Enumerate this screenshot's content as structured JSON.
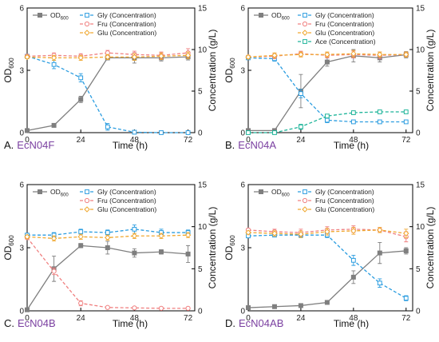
{
  "colors": {
    "od": "#7f7f7f",
    "gly": "#2b9de0",
    "fru": "#f08080",
    "glu": "#f0a830",
    "ace": "#1fb59a",
    "strain": "#7a3fa0"
  },
  "chart_data": [
    {
      "type": "line",
      "panel": "A.",
      "strain": "EcN04F",
      "xlabel": "Time (h)",
      "ylabel_left": "OD",
      "ylabel_left_sub": "600",
      "ylabel_right": "Concentration (g/L)",
      "xlim": [
        0,
        75
      ],
      "ylim_left": [
        0,
        6
      ],
      "ylim_right": [
        0,
        15
      ],
      "xticks": [
        "0",
        "24",
        "48",
        "72"
      ],
      "yticks_left": [
        "0",
        "3",
        "6"
      ],
      "yticks_right": [
        "0",
        "5",
        "10",
        "15"
      ],
      "legend_od": "OD",
      "legend_od_sub": "600",
      "series": [
        {
          "name": "OD",
          "key": "od",
          "axis": "left",
          "style": "solid",
          "marker": "square",
          "x": [
            0,
            12,
            24,
            36,
            48,
            60,
            72
          ],
          "y": [
            0.1,
            0.35,
            1.6,
            3.6,
            3.6,
            3.6,
            3.65
          ],
          "err": [
            0.03,
            0.08,
            0.15,
            0.1,
            0.25,
            0.15,
            0.15
          ]
        },
        {
          "name": "Gly (Concentration)",
          "key": "gly",
          "axis": "right",
          "style": "dashed",
          "marker": "open-square",
          "x": [
            0,
            12,
            24,
            36,
            48,
            60,
            72
          ],
          "y": [
            9.2,
            8.2,
            6.6,
            0.7,
            0.05,
            0.0,
            0.0
          ],
          "err": [
            0.2,
            0.5,
            0.5,
            0.4,
            0.1,
            0.05,
            0.05
          ]
        },
        {
          "name": "Fru (Concentration)",
          "key": "fru",
          "axis": "right",
          "style": "dashed",
          "marker": "open-circle",
          "x": [
            0,
            12,
            24,
            36,
            48,
            60,
            72
          ],
          "y": [
            9.2,
            9.3,
            9.2,
            9.6,
            9.4,
            9.3,
            9.6
          ],
          "err": [
            0.2,
            0.3,
            0.3,
            0.3,
            0.4,
            0.4,
            0.5
          ]
        },
        {
          "name": "Glu (Concentration)",
          "key": "glu",
          "axis": "right",
          "style": "dashed",
          "marker": "open-diamond",
          "x": [
            0,
            12,
            24,
            36,
            48,
            60,
            72
          ],
          "y": [
            9.1,
            9.0,
            9.0,
            9.1,
            9.1,
            9.2,
            9.3
          ],
          "err": [
            0.2,
            0.3,
            0.3,
            0.3,
            0.4,
            0.4,
            0.4
          ]
        }
      ]
    },
    {
      "type": "line",
      "panel": "B.",
      "strain": "EcN04A",
      "xlabel": "Time (h)",
      "ylabel_left": "OD",
      "ylabel_left_sub": "600",
      "ylabel_right": "Concentration (g/L)",
      "xlim": [
        0,
        75
      ],
      "ylim_left": [
        0,
        6
      ],
      "ylim_right": [
        0,
        15
      ],
      "xticks": [
        "0",
        "24",
        "48",
        "72"
      ],
      "yticks_left": [
        "0",
        "3",
        "6"
      ],
      "yticks_right": [
        "0",
        "5",
        "10",
        "15"
      ],
      "legend_od": "OD",
      "legend_od_sub": "600",
      "series": [
        {
          "name": "OD",
          "key": "od",
          "axis": "left",
          "style": "solid",
          "marker": "square",
          "x": [
            0,
            12,
            24,
            36,
            48,
            60,
            72
          ],
          "y": [
            0.1,
            0.1,
            2.0,
            3.4,
            3.7,
            3.6,
            3.75
          ],
          "err": [
            0.02,
            0.05,
            0.8,
            0.2,
            0.3,
            0.2,
            0.15
          ]
        },
        {
          "name": "Gly (Concentration)",
          "key": "gly",
          "axis": "right",
          "style": "dashed",
          "marker": "open-square",
          "x": [
            0,
            12,
            24,
            36,
            48,
            60,
            72
          ],
          "y": [
            9.0,
            8.9,
            4.7,
            1.5,
            1.3,
            1.3,
            1.3
          ],
          "err": [
            0.2,
            0.3,
            0.5,
            0.3,
            0.15,
            0.15,
            0.15
          ]
        },
        {
          "name": "Fru (Concentration)",
          "key": "fru",
          "axis": "right",
          "style": "dashed",
          "marker": "open-circle",
          "x": [
            0,
            12,
            24,
            36,
            48,
            60,
            72
          ],
          "y": [
            9.1,
            9.2,
            9.5,
            9.3,
            9.4,
            9.3,
            9.4
          ],
          "err": [
            0.2,
            0.3,
            0.3,
            0.3,
            0.4,
            0.4,
            0.3
          ]
        },
        {
          "name": "Glu (Concentration)",
          "key": "glu",
          "axis": "right",
          "style": "dashed",
          "marker": "open-diamond",
          "x": [
            0,
            12,
            24,
            36,
            48,
            60,
            72
          ],
          "y": [
            9.1,
            9.3,
            9.4,
            9.4,
            9.5,
            9.4,
            9.4
          ],
          "err": [
            0.2,
            0.3,
            0.3,
            0.3,
            0.4,
            0.3,
            0.3
          ]
        },
        {
          "name": "Ace (Concentration)",
          "key": "ace",
          "axis": "right",
          "style": "dashed",
          "marker": "open-square",
          "x": [
            0,
            12,
            24,
            36,
            48,
            60,
            72
          ],
          "y": [
            0.0,
            0.0,
            0.7,
            2.0,
            2.4,
            2.5,
            2.5
          ],
          "err": [
            0.02,
            0.05,
            0.3,
            0.2,
            0.2,
            0.2,
            0.2
          ]
        }
      ]
    },
    {
      "type": "line",
      "panel": "C.",
      "strain": "EcN04B",
      "xlabel": "Time (h)",
      "ylabel_left": "OD",
      "ylabel_left_sub": "600",
      "ylabel_right": "Concentration (g/L)",
      "xlim": [
        0,
        75
      ],
      "ylim_left": [
        0,
        6
      ],
      "ylim_right": [
        0,
        15
      ],
      "xticks": [
        "0",
        "24",
        "48",
        "72"
      ],
      "yticks_left": [
        "0",
        "3",
        "6"
      ],
      "yticks_right": [
        "0",
        "5",
        "10",
        "15"
      ],
      "legend_od": "OD",
      "legend_od_sub": "600",
      "series": [
        {
          "name": "OD",
          "key": "od",
          "axis": "left",
          "style": "solid",
          "marker": "square",
          "x": [
            0,
            12,
            24,
            36,
            48,
            60,
            72
          ],
          "y": [
            0.05,
            2.0,
            3.1,
            3.0,
            2.75,
            2.8,
            2.7
          ],
          "err": [
            0.02,
            0.6,
            0.1,
            0.3,
            0.2,
            0.1,
            0.4
          ]
        },
        {
          "name": "Gly (Concentration)",
          "key": "gly",
          "axis": "right",
          "style": "dashed",
          "marker": "open-square",
          "x": [
            0,
            12,
            24,
            36,
            48,
            60,
            72
          ],
          "y": [
            9.0,
            9.0,
            9.4,
            9.3,
            9.7,
            9.3,
            9.3
          ],
          "err": [
            0.2,
            0.3,
            0.3,
            0.3,
            0.5,
            0.4,
            0.3
          ]
        },
        {
          "name": "Fru (Concentration)",
          "key": "fru",
          "axis": "right",
          "style": "dashed",
          "marker": "open-circle",
          "x": [
            0,
            12,
            24,
            36,
            48,
            60,
            72
          ],
          "y": [
            8.7,
            4.7,
            0.9,
            0.4,
            0.35,
            0.3,
            0.3
          ],
          "err": [
            0.2,
            0.4,
            0.3,
            0.1,
            0.1,
            0.1,
            0.1
          ]
        },
        {
          "name": "Glu (Concentration)",
          "key": "glu",
          "axis": "right",
          "style": "dashed",
          "marker": "open-diamond",
          "x": [
            0,
            12,
            24,
            36,
            48,
            60,
            72
          ],
          "y": [
            8.8,
            8.6,
            8.8,
            8.7,
            8.9,
            8.9,
            9.0
          ],
          "err": [
            0.2,
            0.3,
            0.3,
            0.3,
            0.3,
            0.3,
            0.3
          ]
        }
      ]
    },
    {
      "type": "line",
      "panel": "D.",
      "strain": "EcN04AB",
      "xlabel": "Time (h)",
      "ylabel_left": "OD",
      "ylabel_left_sub": "600",
      "ylabel_right": "Concentration (g/L)",
      "xlim": [
        0,
        75
      ],
      "ylim_left": [
        0,
        6
      ],
      "ylim_right": [
        0,
        15
      ],
      "xticks": [
        "0",
        "24",
        "48",
        "72"
      ],
      "yticks_left": [
        "0",
        "3",
        "6"
      ],
      "yticks_right": [
        "0",
        "5",
        "10",
        "15"
      ],
      "legend_od": "OD",
      "legend_od_sub": "600",
      "series": [
        {
          "name": "OD",
          "key": "od",
          "axis": "left",
          "style": "solid",
          "marker": "square",
          "x": [
            0,
            12,
            24,
            36,
            48,
            60,
            72
          ],
          "y": [
            0.15,
            0.2,
            0.25,
            0.4,
            1.6,
            2.75,
            2.85
          ],
          "err": [
            0.02,
            0.03,
            0.03,
            0.05,
            0.3,
            0.5,
            0.15
          ]
        },
        {
          "name": "Gly (Concentration)",
          "key": "gly",
          "axis": "right",
          "style": "dashed",
          "marker": "open-square",
          "x": [
            0,
            12,
            24,
            36,
            48,
            60,
            72
          ],
          "y": [
            8.9,
            9.0,
            9.0,
            9.0,
            6.0,
            3.3,
            1.5
          ],
          "err": [
            0.2,
            0.2,
            0.3,
            0.3,
            0.6,
            0.5,
            0.3
          ]
        },
        {
          "name": "Fru (Concentration)",
          "key": "fru",
          "axis": "right",
          "style": "dashed",
          "marker": "open-circle",
          "x": [
            0,
            12,
            24,
            36,
            48,
            60,
            72
          ],
          "y": [
            9.6,
            9.4,
            9.3,
            9.6,
            9.7,
            9.6,
            8.8
          ],
          "err": [
            0.2,
            0.3,
            0.4,
            0.4,
            0.4,
            0.3,
            0.6
          ]
        },
        {
          "name": "Glu (Concentration)",
          "key": "glu",
          "axis": "right",
          "style": "dashed",
          "marker": "open-diamond",
          "x": [
            0,
            12,
            24,
            36,
            48,
            60,
            72
          ],
          "y": [
            9.3,
            9.2,
            9.1,
            9.4,
            9.5,
            9.6,
            9.2
          ],
          "err": [
            0.2,
            0.3,
            0.4,
            0.4,
            0.4,
            0.3,
            0.5
          ]
        }
      ]
    }
  ]
}
